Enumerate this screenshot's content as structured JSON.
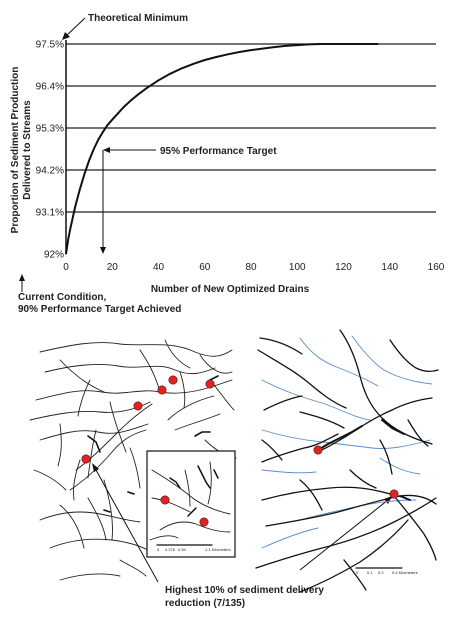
{
  "chart_data": {
    "type": "line",
    "xlabel": "Number of New Optimized Drains",
    "ylabel_lines": [
      "Proportion of Sediment Production",
      "Delivered to Streams"
    ],
    "xlim": [
      0,
      160
    ],
    "ylim": [
      92,
      97.5
    ],
    "x_ticks": [
      0,
      20,
      40,
      60,
      80,
      100,
      120,
      140,
      160
    ],
    "x_tick_labels": [
      "0",
      "20",
      "40",
      "60",
      "80",
      "100",
      "120",
      "140",
      "160"
    ],
    "y_ticks": [
      92,
      93.1,
      94.2,
      95.3,
      96.4,
      97.5
    ],
    "y_tick_labels": [
      "92%",
      "93.1%",
      "94.2%",
      "95.3%",
      "96.4%",
      "97.5%"
    ],
    "grid": "horizontal",
    "series": [
      {
        "x": [
          0,
          1,
          2,
          4,
          6,
          8,
          10,
          12,
          14,
          16,
          18,
          20,
          22,
          25,
          28,
          31,
          35,
          40,
          45,
          50,
          55,
          60,
          65,
          70,
          75,
          80,
          85,
          90,
          95,
          100,
          105,
          110,
          115,
          120,
          125,
          130,
          135
        ],
        "y": [
          92.0,
          92.4,
          92.7,
          93.25,
          93.7,
          94.1,
          94.45,
          94.75,
          95.0,
          95.2,
          95.38,
          95.52,
          95.65,
          95.85,
          96.02,
          96.17,
          96.35,
          96.55,
          96.72,
          96.86,
          96.98,
          97.08,
          97.16,
          97.23,
          97.29,
          97.34,
          97.38,
          97.42,
          97.45,
          97.47,
          97.49,
          97.5,
          97.5,
          97.5,
          97.5,
          97.5,
          97.5
        ]
      }
    ],
    "annotations": {
      "theoretical_minimum": "Theoretical Minimum",
      "performance_target": "95% Performance Target",
      "performance_target_x": 16,
      "current_condition_lines": [
        "Current Condition,",
        "90% Performance Target Achieved"
      ]
    }
  },
  "maps": {
    "callout_lines": [
      "Highest 10% of sediment delivery",
      "reduction (7/135)"
    ],
    "inset_scale_labels": [
      "0",
      "0.275",
      "0.55",
      "1.1 Kilometers"
    ],
    "right_scale_labels": [
      "0",
      "0.1",
      "0.2",
      "0.4 Kilometers"
    ],
    "colors": {
      "stream": "#5b8ec9",
      "road": "#111111",
      "drain": "#e02424"
    }
  }
}
